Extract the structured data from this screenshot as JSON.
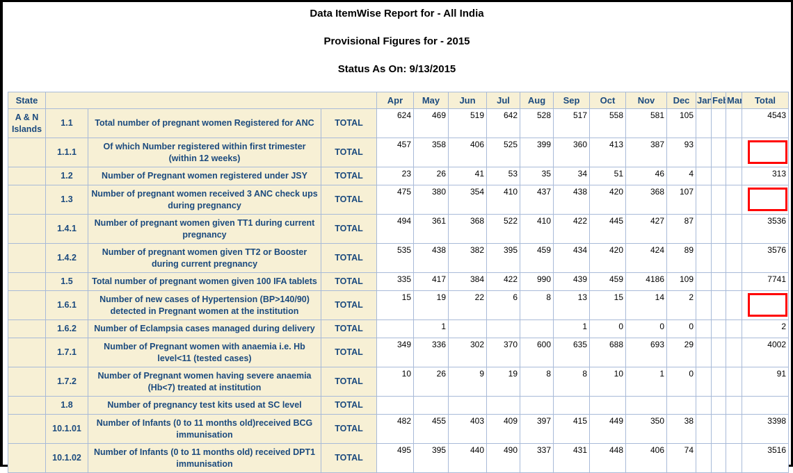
{
  "report": {
    "title": "Data ItemWise Report for - All India",
    "subtitle": "Provisional Figures for - 2015",
    "status": "Status As On: 9/13/2015"
  },
  "colors": {
    "header_bg_beige": "#F7F0D5",
    "grid_border_blue": "#A8BAD8",
    "label_text_navy": "#1B4A7E",
    "highlight_box_red": "#FF0000"
  },
  "table": {
    "header": {
      "state_label": "State",
      "months": [
        "Apr",
        "May",
        "Jun",
        "Jul",
        "Aug",
        "Sep",
        "Oct",
        "Nov",
        "Dec",
        "Jan",
        "Feb",
        "Mar"
      ],
      "total_label": "Total"
    },
    "rows": [
      {
        "state": "A & N Islands",
        "code": "1.1",
        "description": "Total number of pregnant women Registered for ANC",
        "measure": "TOTAL",
        "values": [
          "624",
          "469",
          "519",
          "642",
          "528",
          "517",
          "558",
          "581",
          "105",
          "",
          "",
          ""
        ],
        "total": "4543",
        "total_flagged": false
      },
      {
        "state": "",
        "code": "1.1.1",
        "description": "Of which Number registered within first trimester (within 12 weeks)",
        "measure": "TOTAL",
        "values": [
          "457",
          "358",
          "406",
          "525",
          "399",
          "360",
          "413",
          "387",
          "93",
          "",
          "",
          ""
        ],
        "total": "",
        "total_flagged": true
      },
      {
        "state": "",
        "code": "1.2",
        "description": "Number of Pregnant women registered under JSY",
        "measure": "TOTAL",
        "values": [
          "23",
          "26",
          "41",
          "53",
          "35",
          "34",
          "51",
          "46",
          "4",
          "",
          "",
          ""
        ],
        "total": "313",
        "total_flagged": false
      },
      {
        "state": "",
        "code": "1.3",
        "description": "Number of pregnant women received 3 ANC check ups during pregnancy",
        "measure": "TOTAL",
        "values": [
          "475",
          "380",
          "354",
          "410",
          "437",
          "438",
          "420",
          "368",
          "107",
          "",
          "",
          ""
        ],
        "total": "",
        "total_flagged": true
      },
      {
        "state": "",
        "code": "1.4.1",
        "description": "Number of pregnant women given TT1 during current pregnancy",
        "measure": "TOTAL",
        "values": [
          "494",
          "361",
          "368",
          "522",
          "410",
          "422",
          "445",
          "427",
          "87",
          "",
          "",
          ""
        ],
        "total": "3536",
        "total_flagged": false
      },
      {
        "state": "",
        "code": "1.4.2",
        "description": "Number of pregnant women given TT2 or Booster during current pregnancy",
        "measure": "TOTAL",
        "values": [
          "535",
          "438",
          "382",
          "395",
          "459",
          "434",
          "420",
          "424",
          "89",
          "",
          "",
          ""
        ],
        "total": "3576",
        "total_flagged": false
      },
      {
        "state": "",
        "code": "1.5",
        "description": "Total number of pregnant women given 100 IFA tablets",
        "measure": "TOTAL",
        "values": [
          "335",
          "417",
          "384",
          "422",
          "990",
          "439",
          "459",
          "4186",
          "109",
          "",
          "",
          ""
        ],
        "total": "7741",
        "total_flagged": false
      },
      {
        "state": "",
        "code": "1.6.1",
        "description": "Number of new cases of Hypertension (BP>140/90) detected in Pregnant women at the institution",
        "measure": "TOTAL",
        "values": [
          "15",
          "19",
          "22",
          "6",
          "8",
          "13",
          "15",
          "14",
          "2",
          "",
          "",
          ""
        ],
        "total": "",
        "total_flagged": true
      },
      {
        "state": "",
        "code": "1.6.2",
        "description": "Number of Eclampsia cases managed during delivery",
        "measure": "TOTAL",
        "values": [
          "",
          "1",
          "",
          "",
          "",
          "1",
          "0",
          "0",
          "0",
          "",
          "",
          ""
        ],
        "total": "2",
        "total_flagged": false
      },
      {
        "state": "",
        "code": "1.7.1",
        "description": "Number of Pregnant women with anaemia i.e. Hb level<11 (tested cases)",
        "measure": "TOTAL",
        "values": [
          "349",
          "336",
          "302",
          "370",
          "600",
          "635",
          "688",
          "693",
          "29",
          "",
          "",
          ""
        ],
        "total": "4002",
        "total_flagged": false
      },
      {
        "state": "",
        "code": "1.7.2",
        "description": "Number of Pregnant women having severe anaemia (Hb<7) treated at institution",
        "measure": "TOTAL",
        "values": [
          "10",
          "26",
          "9",
          "19",
          "8",
          "8",
          "10",
          "1",
          "0",
          "",
          "",
          ""
        ],
        "total": "91",
        "total_flagged": false
      },
      {
        "state": "",
        "code": "1.8",
        "description": "Number of pregnancy test kits used at SC level",
        "measure": "TOTAL",
        "values": [
          "",
          "",
          "",
          "",
          "",
          "",
          "",
          "",
          "",
          "",
          "",
          ""
        ],
        "total": "",
        "total_flagged": false
      },
      {
        "state": "",
        "code": "10.1.01",
        "description": "Number of Infants (0 to 11 months old)received BCG immunisation",
        "measure": "TOTAL",
        "values": [
          "482",
          "455",
          "403",
          "409",
          "397",
          "415",
          "449",
          "350",
          "38",
          "",
          "",
          ""
        ],
        "total": "3398",
        "total_flagged": false
      },
      {
        "state": "",
        "code": "10.1.02",
        "description": "Number of Infants (0 to 11 months old) received DPT1 immunisation",
        "measure": "TOTAL",
        "values": [
          "495",
          "395",
          "440",
          "490",
          "337",
          "431",
          "448",
          "406",
          "74",
          "",
          "",
          ""
        ],
        "total": "3516",
        "total_flagged": false
      }
    ]
  }
}
